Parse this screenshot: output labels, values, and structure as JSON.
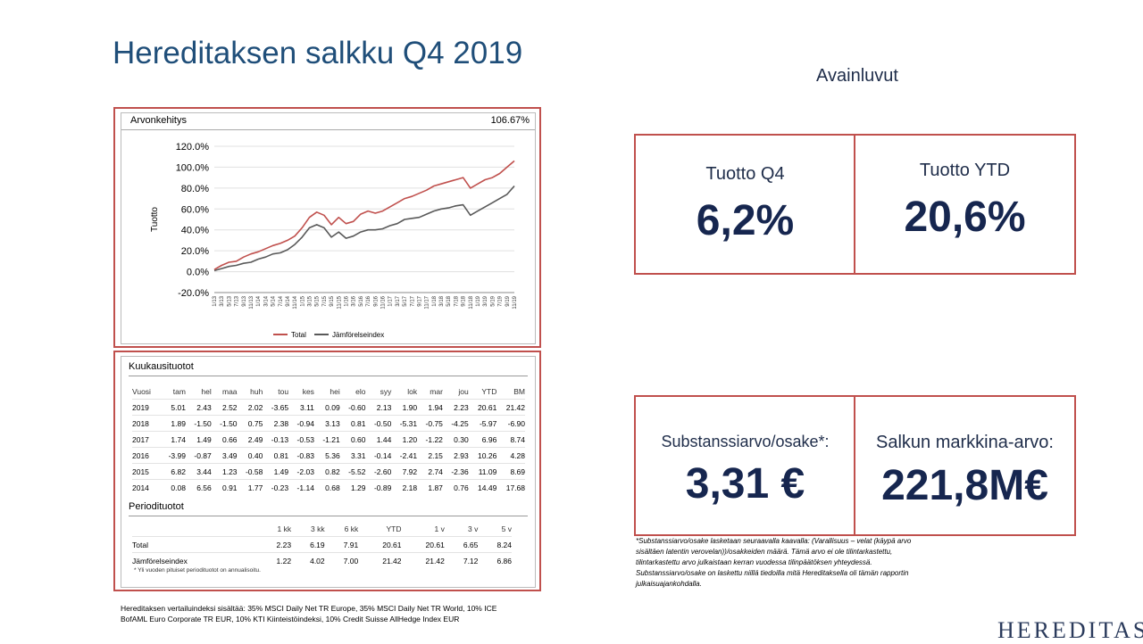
{
  "title": "Hereditaksen salkku Q4 2019",
  "key_figures_heading": "Avainluvut",
  "kpis": [
    {
      "label": "Tuotto Q4",
      "value": "6,2%"
    },
    {
      "label": "Tuotto YTD",
      "value": "20,6%"
    },
    {
      "label": "Substanssiarvo/osake*:",
      "value": "3,31 €"
    },
    {
      "label": "Salkun markkina-arvo:",
      "value": "221,8M€"
    }
  ],
  "chart": {
    "header_title": "Arvonkehitys",
    "header_value": "106.67%",
    "legend_total": "Total",
    "legend_benchmark": "Jämförelseindex",
    "colors": {
      "total": "#c0504d",
      "benchmark": "#595959"
    }
  },
  "chart_data": {
    "type": "line",
    "title": "Arvonkehitys",
    "ylabel": "Tuotto",
    "xlabel": "",
    "ylim": [
      -20,
      120
    ],
    "yticks": [
      "120.0%",
      "100.0%",
      "80.0%",
      "60.0%",
      "40.0%",
      "20.0%",
      "0.0%",
      "-20.0%"
    ],
    "x": [
      "1/13",
      "3/13",
      "5/13",
      "7/13",
      "9/13",
      "11/13",
      "1/14",
      "3/14",
      "5/14",
      "7/14",
      "9/14",
      "11/14",
      "1/15",
      "3/15",
      "5/15",
      "7/15",
      "9/15",
      "11/15",
      "1/16",
      "3/16",
      "5/16",
      "7/16",
      "9/16",
      "11/16",
      "1/17",
      "3/17",
      "5/17",
      "7/17",
      "9/17",
      "11/17",
      "1/18",
      "3/18",
      "5/18",
      "7/18",
      "9/18",
      "11/18",
      "1/19",
      "3/19",
      "5/19",
      "7/19",
      "9/19",
      "11/19"
    ],
    "series": [
      {
        "name": "Total",
        "values": [
          2,
          6,
          9,
          10,
          14,
          17,
          19,
          22,
          25,
          27,
          30,
          34,
          42,
          52,
          57,
          54,
          45,
          52,
          46,
          48,
          55,
          58,
          56,
          58,
          62,
          66,
          70,
          72,
          75,
          78,
          82,
          84,
          86,
          88,
          90,
          80,
          84,
          88,
          90,
          94,
          100,
          106
        ]
      },
      {
        "name": "Jämförelseindex",
        "values": [
          1,
          3,
          5,
          6,
          8,
          9,
          12,
          14,
          17,
          18,
          21,
          26,
          33,
          42,
          45,
          42,
          33,
          38,
          32,
          34,
          38,
          40,
          40,
          41,
          44,
          46,
          50,
          51,
          52,
          55,
          58,
          60,
          61,
          63,
          64,
          54,
          58,
          62,
          66,
          70,
          74,
          82
        ]
      }
    ]
  },
  "monthly": {
    "title": "Kuukausituotot",
    "headers": [
      "Vuosi",
      "tam",
      "hel",
      "maa",
      "huh",
      "tou",
      "kes",
      "hei",
      "elo",
      "syy",
      "lok",
      "mar",
      "jou",
      "YTD",
      "BM"
    ],
    "rows": [
      [
        "2019",
        "5.01",
        "2.43",
        "2.52",
        "2.02",
        "-3.65",
        "3.11",
        "0.09",
        "-0.60",
        "2.13",
        "1.90",
        "1.94",
        "2.23",
        "20.61",
        "21.42"
      ],
      [
        "2018",
        "1.89",
        "-1.50",
        "-1.50",
        "0.75",
        "2.38",
        "-0.94",
        "3.13",
        "0.81",
        "-0.50",
        "-5.31",
        "-0.75",
        "-4.25",
        "-5.97",
        "-6.90"
      ],
      [
        "2017",
        "1.74",
        "1.49",
        "0.66",
        "2.49",
        "-0.13",
        "-0.53",
        "-1.21",
        "0.60",
        "1.44",
        "1.20",
        "-1.22",
        "0.30",
        "6.96",
        "8.74"
      ],
      [
        "2016",
        "-3.99",
        "-0.87",
        "3.49",
        "0.40",
        "0.81",
        "-0.83",
        "5.36",
        "3.31",
        "-0.14",
        "-2.41",
        "2.15",
        "2.93",
        "10.26",
        "4.28"
      ],
      [
        "2015",
        "6.82",
        "3.44",
        "1.23",
        "-0.58",
        "1.49",
        "-2.03",
        "0.82",
        "-5.52",
        "-2.60",
        "7.92",
        "2.74",
        "-2.36",
        "11.09",
        "8.69"
      ],
      [
        "2014",
        "0.08",
        "6.56",
        "0.91",
        "1.77",
        "-0.23",
        "-1.14",
        "0.68",
        "1.29",
        "-0.89",
        "2.18",
        "1.87",
        "0.76",
        "14.49",
        "17.68"
      ]
    ]
  },
  "period": {
    "title": "Periodituotot",
    "headers": [
      "",
      "1 kk",
      "3 kk",
      "6 kk",
      "YTD",
      "1 v",
      "3 v",
      "5 v"
    ],
    "rows": [
      [
        "Total",
        "2.23",
        "6.19",
        "7.91",
        "20.61",
        "20.61",
        "6.65",
        "8.24"
      ],
      [
        "Jämförelseindex",
        "1.22",
        "4.02",
        "7.00",
        "21.42",
        "21.42",
        "7.12",
        "6.86"
      ]
    ],
    "note": "* Yli vuoden pituiset periodituotot on annualisoitu."
  },
  "footnote": "*Substanssiarvo/osake lasketaan seuraavalla kaavalla: (Varallisuus – velat (käypä arvo sisältäen latentin verovelan))/osakkeiden määrä. Tämä arvo ei ole tilintarkastettu, tilintarkastettu arvo julkaistaan kerran vuodessa tilinpäätöksen yhteydessä. Substanssiarvo/osake on laskettu niillä tiedoilla mitä Hereditaksella oli tämän rapportin julkaisuajankohdalla.",
  "benchmark_note": "Hereditaksen vertailuindeksi sisältää: 35% MSCI Daily Net TR Europe, 35% MSCI Daily Net TR World, 10% ICE BofAML Euro Corporate TR EUR, 10% KTI Kiinteistöindeksi, 10% Credit Suisse AllHedge Index EUR",
  "logo": "HEREDITAS"
}
